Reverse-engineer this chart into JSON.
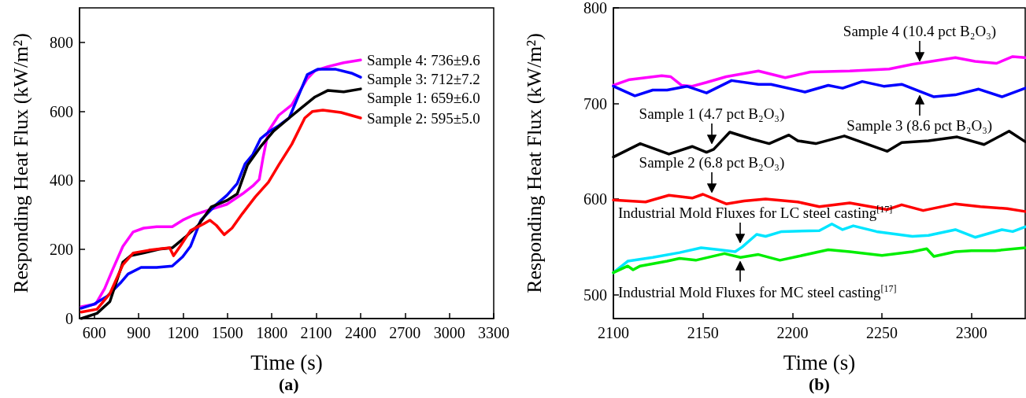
{
  "chart_data": [
    {
      "type": "line",
      "title": "(a)",
      "xlabel": "Time (s)",
      "ylabel": "Responding Heat Flux (kW/m²)",
      "xlim": [
        500,
        3300
      ],
      "xticks": [
        600,
        900,
        1200,
        1500,
        1800,
        2100,
        2400,
        2700,
        3000,
        3300
      ],
      "ylim": [
        0,
        900
      ],
      "yticks": [
        0,
        200,
        400,
        600,
        800
      ],
      "grid": false,
      "marker": "none",
      "line_style": "solid",
      "series": [
        {
          "color": "#ff00ff",
          "x": [
            512,
            609,
            670,
            723,
            793,
            863,
            934,
            1021,
            1127,
            1197,
            1267,
            1355,
            1496,
            1601,
            1671,
            1715,
            1741,
            1777,
            1847,
            1935,
            1987,
            2040,
            2092,
            2180,
            2286,
            2400
          ],
          "values": [
            34,
            42,
            87,
            141,
            209,
            251,
            262,
            266,
            266,
            285,
            299,
            312,
            331,
            361,
            384,
            403,
            467,
            543,
            589,
            619,
            657,
            695,
            718,
            730,
            741,
            749
          ]
        },
        {
          "color": "#0000ff",
          "x": [
            512,
            600,
            688,
            776,
            828,
            916,
            1021,
            1127,
            1197,
            1250,
            1320,
            1425,
            1496,
            1566,
            1619,
            1671,
            1724,
            1777,
            1847,
            1917,
            1970,
            2040,
            2110,
            2233,
            2338,
            2400
          ],
          "values": [
            30,
            42,
            65,
            103,
            129,
            148,
            148,
            152,
            179,
            209,
            285,
            331,
            357,
            391,
            448,
            475,
            521,
            540,
            559,
            581,
            635,
            707,
            722,
            722,
            711,
            699
          ]
        },
        {
          "color": "#000000",
          "x": [
            512,
            618,
            705,
            793,
            846,
            934,
            1039,
            1127,
            1215,
            1302,
            1390,
            1496,
            1566,
            1636,
            1724,
            1812,
            1917,
            2005,
            2092,
            2180,
            2286,
            2400
          ],
          "values": [
            0,
            15,
            49,
            163,
            182,
            190,
            201,
            205,
            236,
            270,
            323,
            342,
            361,
            445,
            498,
            543,
            581,
            612,
            642,
            661,
            657,
            665
          ]
        },
        {
          "color": "#ff0000",
          "x": [
            512,
            618,
            705,
            793,
            863,
            969,
            1109,
            1136,
            1180,
            1250,
            1338,
            1381,
            1425,
            1478,
            1531,
            1601,
            1689,
            1777,
            1847,
            1935,
            2023,
            2075,
            2145,
            2268,
            2400
          ],
          "values": [
            19,
            27,
            72,
            156,
            190,
            198,
            205,
            182,
            209,
            255,
            274,
            285,
            270,
            243,
            262,
            304,
            353,
            395,
            445,
            505,
            581,
            600,
            604,
            597,
            581
          ]
        }
      ],
      "annotations": [
        "Sample 4: 736±9.6",
        "Sample 3: 712±7.2",
        "Sample 1: 659±6.0",
        "Sample 2: 595±5.0"
      ]
    },
    {
      "type": "line",
      "title": "(b)",
      "xlabel": "Time (s)",
      "ylabel": "Responding Heat Flux (kW/m²)",
      "xlim": [
        2100,
        2330
      ],
      "xticks": [
        2100,
        2150,
        2200,
        2250,
        2300
      ],
      "ylim": [
        475,
        800
      ],
      "yticks": [
        500,
        600,
        700,
        800
      ],
      "grid": false,
      "marker": "none",
      "line_style": "solid",
      "series": [
        {
          "color": "#ff00ff",
          "x": [
            2100,
            2109,
            2127,
            2132,
            2138,
            2144,
            2152,
            2163,
            2181,
            2196,
            2210,
            2232,
            2254,
            2267,
            2291,
            2302,
            2314,
            2323,
            2330
          ],
          "values": [
            719,
            725,
            729,
            728,
            719,
            718,
            722,
            728,
            734,
            727,
            733,
            734,
            736,
            741,
            748,
            744,
            742,
            749,
            748
          ]
        },
        {
          "color": "#0000ff",
          "x": [
            2100,
            2112,
            2122,
            2130,
            2141,
            2152,
            2166,
            2181,
            2188,
            2207,
            2220,
            2228,
            2239,
            2251,
            2261,
            2268,
            2279,
            2291,
            2304,
            2317,
            2330
          ],
          "values": [
            718,
            708,
            714,
            714,
            718,
            711,
            724,
            720,
            720,
            712,
            719,
            716,
            723,
            718,
            720,
            715,
            707,
            709,
            715,
            707,
            716
          ]
        },
        {
          "color": "#000000",
          "x": [
            2100,
            2115,
            2131,
            2144,
            2152,
            2156,
            2165,
            2177,
            2187,
            2198,
            2203,
            2213,
            2229,
            2241,
            2253,
            2261,
            2276,
            2292,
            2307,
            2321,
            2330
          ],
          "values": [
            644,
            658,
            647,
            655,
            649,
            652,
            670,
            663,
            658,
            667,
            661,
            658,
            666,
            658,
            650,
            659,
            661,
            665,
            657,
            671,
            660
          ]
        },
        {
          "color": "#ff0000",
          "x": [
            2100,
            2118,
            2131,
            2144,
            2150,
            2163,
            2173,
            2185,
            2203,
            2215,
            2232,
            2253,
            2261,
            2273,
            2291,
            2305,
            2320,
            2330
          ],
          "values": [
            599,
            597,
            604,
            601,
            605,
            595,
            598,
            600,
            597,
            592,
            596,
            589,
            594,
            588,
            595,
            592,
            590,
            587
          ]
        },
        {
          "color": "#00e5ff",
          "x": [
            2100,
            2108,
            2122,
            2137,
            2149,
            2159,
            2168,
            2172,
            2180,
            2185,
            2194,
            2215,
            2222,
            2228,
            2234,
            2247,
            2267,
            2276,
            2291,
            2302,
            2317,
            2323,
            2330
          ],
          "values": [
            523,
            535,
            539,
            544,
            549,
            547,
            545,
            550,
            563,
            561,
            566,
            567,
            574,
            568,
            572,
            566,
            561,
            562,
            568,
            560,
            568,
            566,
            571
          ]
        },
        {
          "color": "#00ee00",
          "x": [
            2100,
            2108,
            2111,
            2115,
            2130,
            2137,
            2146,
            2162,
            2171,
            2181,
            2193,
            2203,
            2220,
            2232,
            2250,
            2267,
            2275,
            2279,
            2291,
            2300,
            2313,
            2330
          ],
          "values": [
            523,
            530,
            526,
            530,
            535,
            538,
            536,
            543,
            539,
            542,
            536,
            540,
            547,
            545,
            541,
            545,
            548,
            540,
            545,
            546,
            546,
            549
          ]
        }
      ],
      "annotations": [
        {
          "text": "Sample 4 (10.4 pct B₂O₃)",
          "x": 2271,
          "y": 744
        },
        {
          "text": "Sample 3 (8.6 pct B₂O₃)",
          "x": 2271,
          "y": 709
        },
        {
          "text": "Sample 1 (4.7 pct B₂O₃)",
          "x": 2155,
          "y": 658
        },
        {
          "text": "Sample 2 (6.8 pct B₂O₃)",
          "x": 2155,
          "y": 607
        },
        {
          "text": "Industrial Mold Fluxes for LC steel casting$^{[17]}$",
          "x": 2171,
          "y": 554
        },
        {
          "text": "Industrial Mold Fluxes for MC steel casting$^{[17]}$",
          "x": 2171,
          "y": 535
        }
      ]
    }
  ]
}
